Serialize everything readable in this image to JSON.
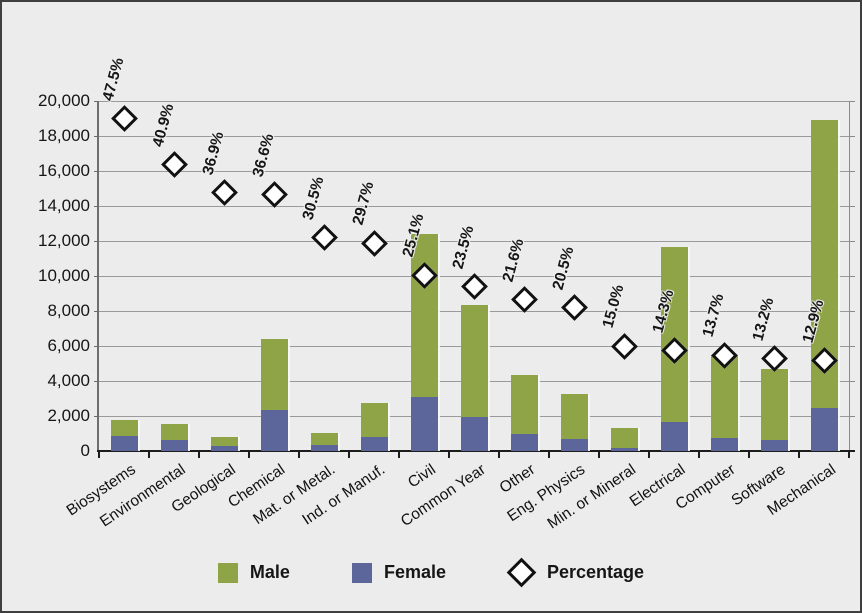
{
  "chart_data": {
    "type": "bar",
    "stacked": true,
    "title": "",
    "categories": [
      "Biosystems",
      "Environmental",
      "Geological",
      "Chemical",
      "Mat. or Metal.",
      "Ind. or Manuf.",
      "Civil",
      "Common Year",
      "Other",
      "Eng. Physics",
      "Min. or Mineral",
      "Electrical",
      "Computer",
      "Software",
      "Mechanical"
    ],
    "series": [
      {
        "name": "Male",
        "color": "#8FA447",
        "values": [
          930,
          915,
          520,
          4060,
          730,
          1940,
          9290,
          6390,
          3425,
          2610,
          1105,
          9985,
          4745,
          4080,
          16460
        ]
      },
      {
        "name": "Female",
        "color": "#5C669B",
        "values": [
          840,
          635,
          300,
          2340,
          320,
          820,
          3110,
          1960,
          945,
          670,
          195,
          1665,
          755,
          620,
          2440
        ]
      }
    ],
    "totals": [
      1770,
      1550,
      820,
      6400,
      1050,
      2760,
      12400,
      8350,
      4370,
      3280,
      1300,
      11650,
      5500,
      4700,
      18900
    ],
    "percentage_series": {
      "name": "Percentage",
      "marker": "diamond",
      "values": [
        47.5,
        40.9,
        36.9,
        36.6,
        30.5,
        29.7,
        25.1,
        23.5,
        21.6,
        20.5,
        15.0,
        14.3,
        13.7,
        13.2,
        12.9
      ],
      "labels": [
        "47.5%",
        "40.9%",
        "36.9%",
        "36.6%",
        "30.5%",
        "29.7%",
        "25.1%",
        "23.5%",
        "21.6%",
        "20.5%",
        "15.0%",
        "14.3%",
        "13.7%",
        "13.2%",
        "12.9%"
      ],
      "plotted_on_primary_axis_scale_factor": 400
    },
    "xlabel": "",
    "ylabel": "",
    "ylim": [
      0,
      20000
    ],
    "y_tick_step": 2000,
    "y_tick_labels": [
      "0",
      "2,000",
      "4,000",
      "6,000",
      "8,000",
      "10,000",
      "12,000",
      "14,000",
      "16,000",
      "18,000",
      "20,000"
    ],
    "grid": true,
    "legend_position": "bottom"
  },
  "legend": {
    "male_label": "Male",
    "female_label": "Female",
    "percentage_label": "Percentage"
  },
  "colors": {
    "male": "#8FA447",
    "female": "#5C669B",
    "background": "#ECECEC",
    "gridline": "#9A9A9A",
    "axis": "#1c1c1c",
    "marker_fill": "#FFFFFF",
    "marker_border": "#111111",
    "frame_border": "#3F3F3F",
    "text": "#161616"
  }
}
